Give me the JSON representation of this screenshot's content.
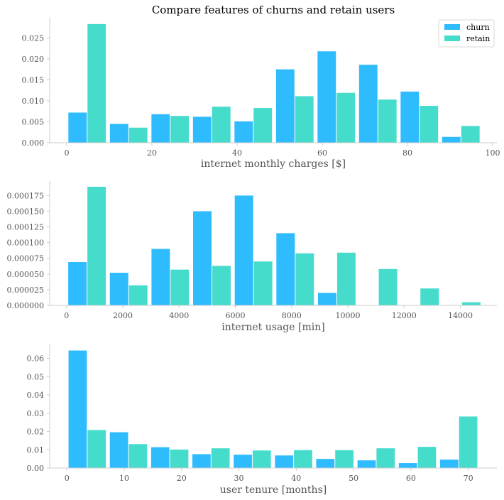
{
  "figure_title": "Compare features of churns and retain users",
  "legend": {
    "placement": "top-right",
    "entries": [
      {
        "label": "churn",
        "color": "#2ebcff"
      },
      {
        "label": "retain",
        "color": "#46dccc"
      }
    ]
  },
  "chart_data": [
    {
      "type": "bar",
      "xlabel": "internet monthly charges [$]",
      "ylabel": "",
      "xlim": [
        -4,
        101
      ],
      "ylim": [
        0,
        0.0298
      ],
      "xticks": [
        0,
        20,
        40,
        60,
        80,
        100
      ],
      "xtick_labels": [
        "0",
        "20",
        "40",
        "60",
        "80",
        "100"
      ],
      "yticks": [
        0,
        0.005,
        0.01,
        0.015,
        0.02,
        0.025
      ],
      "ytick_labels": [
        "0.000",
        "0.005",
        "0.010",
        "0.015",
        "0.020",
        "0.025"
      ],
      "bin_edges": [
        0,
        9.75,
        19.5,
        29.25,
        39,
        48.75,
        58.5,
        68.25,
        78,
        87.75,
        97.5
      ],
      "series": [
        {
          "name": "churn",
          "color": "#2ebcff",
          "values": [
            0.0072,
            0.0045,
            0.0068,
            0.0062,
            0.0051,
            0.0175,
            0.0218,
            0.0186,
            0.0122,
            0.0014
          ]
        },
        {
          "name": "retain",
          "color": "#46dccc",
          "values": [
            0.0283,
            0.0036,
            0.0064,
            0.0086,
            0.0083,
            0.0111,
            0.0119,
            0.0103,
            0.0088,
            0.004
          ]
        }
      ],
      "grid": false
    },
    {
      "type": "bar",
      "xlabel": "internet usage [min]",
      "ylabel": "",
      "xlim": [
        -600,
        15300
      ],
      "ylim": [
        0,
        0.000198
      ],
      "xticks": [
        0,
        2000,
        4000,
        6000,
        8000,
        10000,
        12000,
        14000
      ],
      "xtick_labels": [
        "0",
        "2000",
        "4000",
        "6000",
        "8000",
        "10000",
        "12000",
        "14000"
      ],
      "yticks": [
        0,
        2.5e-05,
        5e-05,
        7.5e-05,
        0.0001,
        0.000125,
        0.00015,
        0.000175
      ],
      "ytick_labels": [
        "0.000000",
        "0.000025",
        "0.000050",
        "0.000075",
        "0.000100",
        "0.000125",
        "0.000150",
        "0.000175"
      ],
      "bin_edges": [
        0,
        1480,
        2960,
        4440,
        5920,
        7400,
        8880,
        10360,
        11840,
        13320,
        14800
      ],
      "series": [
        {
          "name": "churn",
          "color": "#2ebcff",
          "values": [
            6.9e-05,
            5.2e-05,
            9e-05,
            0.00015,
            0.000175,
            0.000115,
            2e-05,
            0,
            0,
            0
          ]
        },
        {
          "name": "retain",
          "color": "#46dccc",
          "values": [
            0.000189,
            3.2e-05,
            5.7e-05,
            6.3e-05,
            7e-05,
            8.3e-05,
            8.4e-05,
            5.8e-05,
            2.7e-05,
            5e-06
          ]
        }
      ],
      "grid": false
    },
    {
      "type": "bar",
      "xlabel": "user tenure [months]",
      "ylabel": "",
      "xlim": [
        -3,
        75
      ],
      "ylim": [
        0,
        0.068
      ],
      "xticks": [
        0,
        10,
        20,
        30,
        40,
        50,
        60,
        70
      ],
      "xtick_labels": [
        "0",
        "10",
        "20",
        "30",
        "40",
        "50",
        "60",
        "70"
      ],
      "yticks": [
        0,
        0.01,
        0.02,
        0.03,
        0.04,
        0.05,
        0.06
      ],
      "ytick_labels": [
        "0.00",
        "0.01",
        "0.02",
        "0.03",
        "0.04",
        "0.05",
        "0.06"
      ],
      "bin_edges": [
        0,
        7.2,
        14.4,
        21.6,
        28.8,
        36,
        43.2,
        50.4,
        57.6,
        64.8,
        72
      ],
      "series": [
        {
          "name": "churn",
          "color": "#2ebcff",
          "values": [
            0.0643,
            0.0196,
            0.0114,
            0.0076,
            0.0073,
            0.0069,
            0.005,
            0.0042,
            0.0027,
            0.0046
          ]
        },
        {
          "name": "retain",
          "color": "#46dccc",
          "values": [
            0.0208,
            0.0131,
            0.0101,
            0.0108,
            0.0096,
            0.0098,
            0.0098,
            0.0108,
            0.0116,
            0.0282
          ]
        }
      ],
      "grid": false
    }
  ]
}
